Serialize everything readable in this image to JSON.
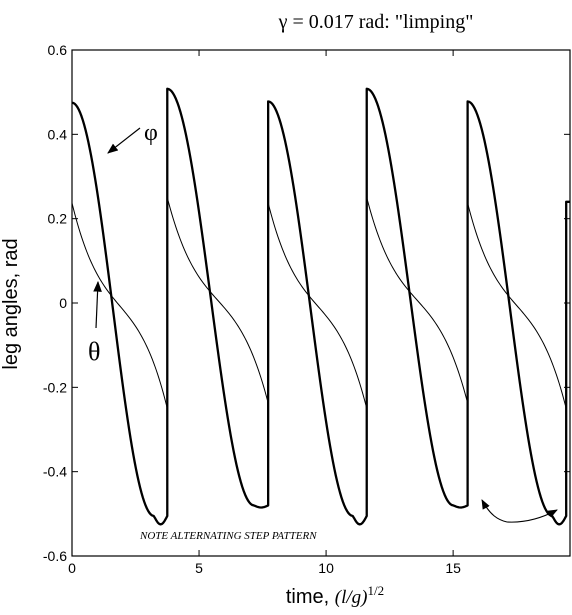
{
  "chart_data": {
    "type": "line",
    "title": "γ = 0.017 rad: \"limping\"",
    "xlabel_main": "time, ",
    "xlabel_units": "(l/g)",
    "xlabel_exponent": "1/2",
    "ylabel": "leg angles, rad",
    "xlim": [
      0,
      19.6
    ],
    "ylim": [
      -0.6,
      0.6
    ],
    "xticks": [
      0,
      5,
      10,
      15
    ],
    "xtick_labels": [
      "0",
      "5",
      "10",
      "15"
    ],
    "yticks": [
      -0.6,
      -0.4,
      -0.2,
      0,
      0.2,
      0.4,
      0.6
    ],
    "ytick_labels": [
      "-0.6",
      "-0.4",
      "-0.2",
      "0",
      "0.2",
      "0.4",
      "0.6"
    ],
    "grid": false,
    "series": [
      {
        "name": "φ",
        "style": "thick",
        "segments": [
          {
            "t0": 0.0,
            "t1": 3.75,
            "start": 0.475,
            "end": -0.505,
            "overshoot": -0.02
          },
          {
            "t0": 3.75,
            "t1": 7.72,
            "start": 0.508,
            "end": -0.48,
            "overshoot": -0.005
          },
          {
            "t0": 7.72,
            "t1": 11.6,
            "start": 0.478,
            "end": -0.505,
            "overshoot": -0.02
          },
          {
            "t0": 11.6,
            "t1": 15.57,
            "start": 0.508,
            "end": -0.48,
            "overshoot": -0.005
          },
          {
            "t0": 15.57,
            "t1": 19.45,
            "start": 0.478,
            "end": -0.505,
            "overshoot": -0.02
          },
          {
            "t0": 19.45,
            "t1": 19.6,
            "start": 0.24,
            "end": 0.24,
            "overshoot": 0
          }
        ]
      },
      {
        "name": "θ",
        "style": "thin",
        "segments": [
          {
            "t0": 0.0,
            "t1": 3.75,
            "start": 0.237,
            "end": -0.25
          },
          {
            "t0": 3.75,
            "t1": 7.72,
            "start": 0.25,
            "end": -0.237
          },
          {
            "t0": 7.72,
            "t1": 11.6,
            "start": 0.237,
            "end": -0.25
          },
          {
            "t0": 11.6,
            "t1": 15.57,
            "start": 0.25,
            "end": -0.237
          },
          {
            "t0": 15.57,
            "t1": 19.45,
            "start": 0.237,
            "end": -0.25
          }
        ]
      }
    ],
    "annotations": [
      {
        "name": "phi",
        "text": "φ"
      },
      {
        "name": "theta",
        "text": "θ"
      },
      {
        "name": "note",
        "text": "NOTE ALTERNATING STEP PATTERN"
      }
    ]
  }
}
